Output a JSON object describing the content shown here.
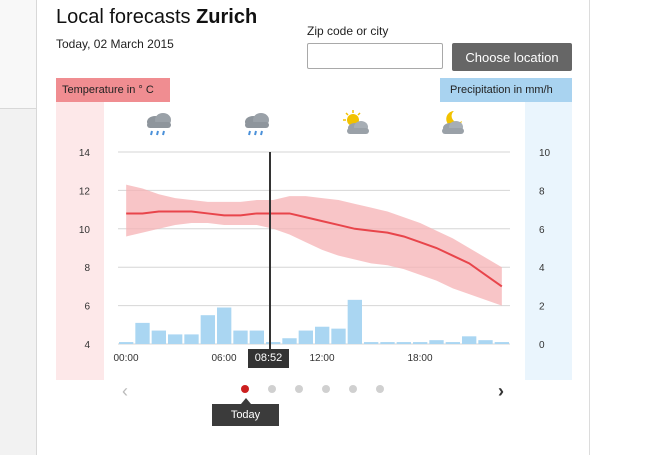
{
  "header": {
    "title_prefix": "Local forecasts",
    "title_city": "Zurich",
    "date": "Today, 02 March 2015"
  },
  "location": {
    "zip_label": "Zip code or city",
    "zip_value": "",
    "zip_placeholder": "",
    "button_label": "Choose location"
  },
  "axes": {
    "temperature_label": "Temperature in ° C",
    "precipitation_label": "Precipitation in mm/h",
    "temperature_color": "#f08d91",
    "precipitation_color": "#a9d3f0"
  },
  "now_marker": {
    "time": "08:52"
  },
  "weather_icons": [
    "cloud-rain-icon",
    "cloud-rain-icon",
    "sun-cloud-icon",
    "moon-cloud-icon"
  ],
  "pager": {
    "today_label": "Today",
    "page_count": 6,
    "active_page": 0,
    "active_color": "#cc1f1f"
  },
  "chart_data": {
    "type": "line",
    "title": "",
    "x": [
      "00:00",
      "01:00",
      "02:00",
      "03:00",
      "04:00",
      "05:00",
      "06:00",
      "07:00",
      "08:00",
      "09:00",
      "10:00",
      "11:00",
      "12:00",
      "13:00",
      "14:00",
      "15:00",
      "16:00",
      "17:00",
      "18:00",
      "19:00",
      "20:00",
      "21:00",
      "22:00",
      "23:00"
    ],
    "x_tick_labels": [
      "00:00",
      "06:00",
      "12:00",
      "18:00"
    ],
    "series": [
      {
        "axis": "left",
        "type": "line",
        "color": "#e8454b",
        "values": [
          10.8,
          10.8,
          10.9,
          10.9,
          10.9,
          10.8,
          10.7,
          10.7,
          10.8,
          10.8,
          10.8,
          10.6,
          10.4,
          10.2,
          10.0,
          9.9,
          9.8,
          9.6,
          9.3,
          9.0,
          8.6,
          8.2,
          7.6,
          7.0
        ],
        "band_low": [
          9.6,
          9.8,
          10.0,
          10.2,
          10.3,
          10.3,
          10.2,
          10.2,
          10.2,
          10.0,
          9.7,
          9.3,
          8.9,
          8.6,
          8.4,
          8.2,
          8.1,
          7.9,
          7.6,
          7.3,
          6.9,
          6.6,
          6.3,
          6.0
        ],
        "band_high": [
          12.3,
          12.1,
          11.8,
          11.6,
          11.5,
          11.4,
          11.4,
          11.4,
          11.5,
          11.5,
          11.7,
          11.7,
          11.6,
          11.5,
          11.3,
          11.1,
          10.9,
          10.6,
          10.3,
          9.9,
          9.5,
          9.0,
          8.5,
          8.0
        ]
      },
      {
        "axis": "right",
        "type": "bar",
        "color": "#aad6f2",
        "values": [
          0.1,
          1.1,
          0.7,
          0.5,
          0.5,
          1.5,
          1.9,
          0.7,
          0.7,
          0.1,
          0.3,
          0.7,
          0.9,
          0.8,
          2.3,
          0.1,
          0.1,
          0.1,
          0.1,
          0.2,
          0.1,
          0.4,
          0.2,
          0.1
        ]
      }
    ],
    "y_left": {
      "ylim": [
        3.8,
        14.4
      ],
      "ticks": [
        4,
        6,
        8,
        10,
        12,
        14
      ]
    },
    "y_right": {
      "ylim": [
        -0.1,
        10.4
      ],
      "ticks": [
        0,
        2,
        4,
        6,
        8,
        10
      ]
    },
    "grid": true
  }
}
